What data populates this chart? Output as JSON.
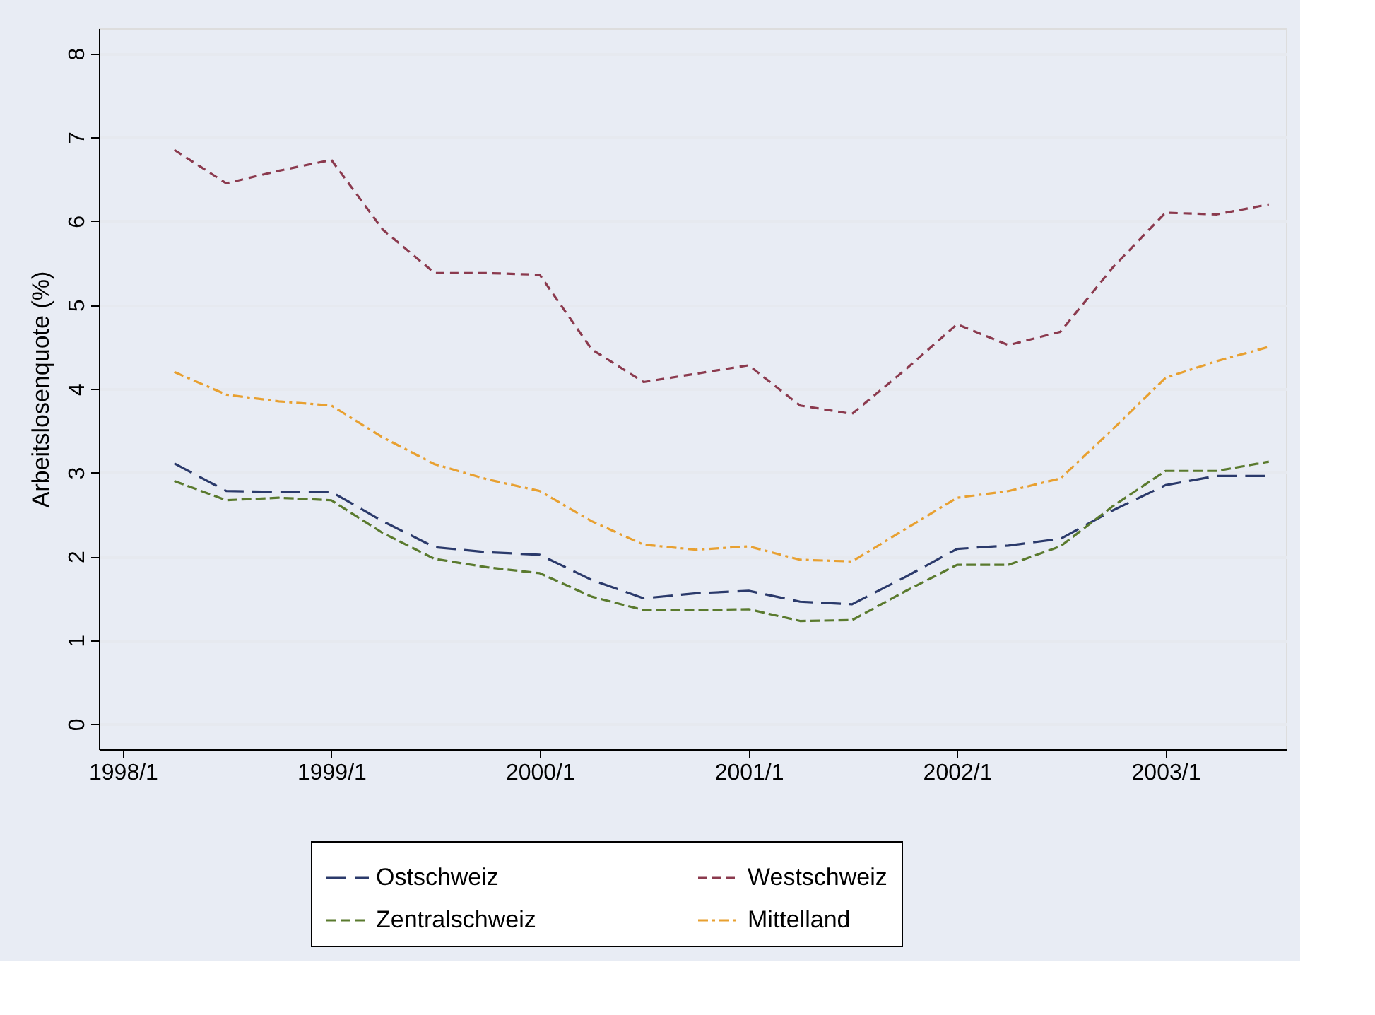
{
  "chart_data": {
    "type": "line",
    "ylabel": "Arbeitslosenquote (%)",
    "x": [
      "1998-04",
      "1998-07",
      "1998-10",
      "1999-01",
      "1999-04",
      "1999-07",
      "1999-10",
      "2000-01",
      "2000-04",
      "2000-07",
      "2000-10",
      "2001-01",
      "2001-04",
      "2001-07",
      "2001-10",
      "2002-01",
      "2002-04",
      "2002-07",
      "2002-10",
      "2003-01",
      "2003-04",
      "2003-07"
    ],
    "series": [
      {
        "name": "Ostschweiz",
        "color": "#2b3a6b",
        "values": [
          3.11,
          2.78,
          2.77,
          2.77,
          2.42,
          2.11,
          2.05,
          2.02,
          1.72,
          1.5,
          1.56,
          1.59,
          1.46,
          1.43,
          1.75,
          2.09,
          2.13,
          2.21,
          2.55,
          2.85,
          2.96,
          2.96
        ]
      },
      {
        "name": "Westschweiz",
        "color": "#8b3a4e",
        "values": [
          6.85,
          6.45,
          6.6,
          6.73,
          5.9,
          5.38,
          5.38,
          5.36,
          4.47,
          4.08,
          4.18,
          4.28,
          3.8,
          3.7,
          4.22,
          4.77,
          4.52,
          4.68,
          5.45,
          6.1,
          6.08,
          6.2
        ]
      },
      {
        "name": "Zentralschweiz",
        "color": "#5a7a2e",
        "values": [
          2.9,
          2.67,
          2.7,
          2.67,
          2.28,
          1.97,
          1.87,
          1.8,
          1.52,
          1.36,
          1.36,
          1.37,
          1.23,
          1.24,
          1.58,
          1.9,
          1.9,
          2.12,
          2.6,
          3.02,
          3.02,
          3.13
        ]
      },
      {
        "name": "Mittelland",
        "color": "#e8a030",
        "values": [
          4.2,
          3.93,
          3.85,
          3.8,
          3.42,
          3.1,
          2.92,
          2.78,
          2.42,
          2.14,
          2.08,
          2.12,
          1.96,
          1.94,
          2.32,
          2.7,
          2.78,
          2.93,
          3.52,
          4.13,
          4.33,
          4.5
        ]
      }
    ],
    "xlim": [
      "1997-11-20",
      "2003-07-31"
    ],
    "ylim": [
      -0.3,
      8.3
    ],
    "xticks": [
      {
        "value": "1998-01",
        "label": "1998/1"
      },
      {
        "value": "1999-01",
        "label": "1999/1"
      },
      {
        "value": "2000-01",
        "label": "2000/1"
      },
      {
        "value": "2001-01",
        "label": "2001/1"
      },
      {
        "value": "2002-01",
        "label": "2002/1"
      },
      {
        "value": "2003-01",
        "label": "2003/1"
      }
    ],
    "yticks": [
      0,
      1,
      2,
      3,
      4,
      5,
      6,
      7,
      8
    ],
    "grid": "y",
    "legend": "bottom",
    "line_style": "dashed",
    "marker": "none"
  }
}
